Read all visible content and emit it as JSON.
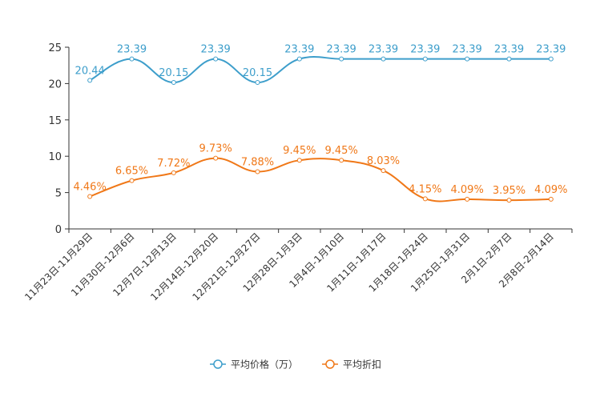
{
  "chart_data": {
    "type": "line",
    "categories": [
      "11月23日-11月29日",
      "11月30日-12月6日",
      "12月7日-12月13日",
      "12月14日-12月20日",
      "12月21日-12月27日",
      "12月28日-1月3日",
      "1月4日-1月10日",
      "1月11日-1月17日",
      "1月18日-1月24日",
      "1月25日-1月31日",
      "2月1日-2月7日",
      "2月8日-2月14日"
    ],
    "ylim": [
      0,
      25
    ],
    "yticks": [
      0,
      5,
      10,
      15,
      20,
      25
    ],
    "series": [
      {
        "name": "平均价格（万）",
        "color": "#3d9ecb",
        "values": [
          20.44,
          23.39,
          20.15,
          23.39,
          20.15,
          23.39,
          23.39,
          23.39,
          23.39,
          23.39,
          23.39,
          23.39
        ],
        "labels": [
          "20.44",
          "23.39",
          "20.15",
          "23.39",
          "20.15",
          "23.39",
          "23.39",
          "23.39",
          "23.39",
          "23.39",
          "23.39",
          "23.39"
        ]
      },
      {
        "name": "平均折扣",
        "color": "#f07818",
        "values": [
          4.46,
          6.65,
          7.72,
          9.73,
          7.88,
          9.45,
          9.45,
          8.03,
          4.15,
          4.09,
          3.95,
          4.09
        ],
        "labels": [
          "4.46%",
          "6.65%",
          "7.72%",
          "9.73%",
          "7.88%",
          "9.45%",
          "9.45%",
          "8.03%",
          "4.15%",
          "4.09%",
          "3.95%",
          "4.09%"
        ]
      }
    ],
    "legend_position": "bottom-center"
  }
}
